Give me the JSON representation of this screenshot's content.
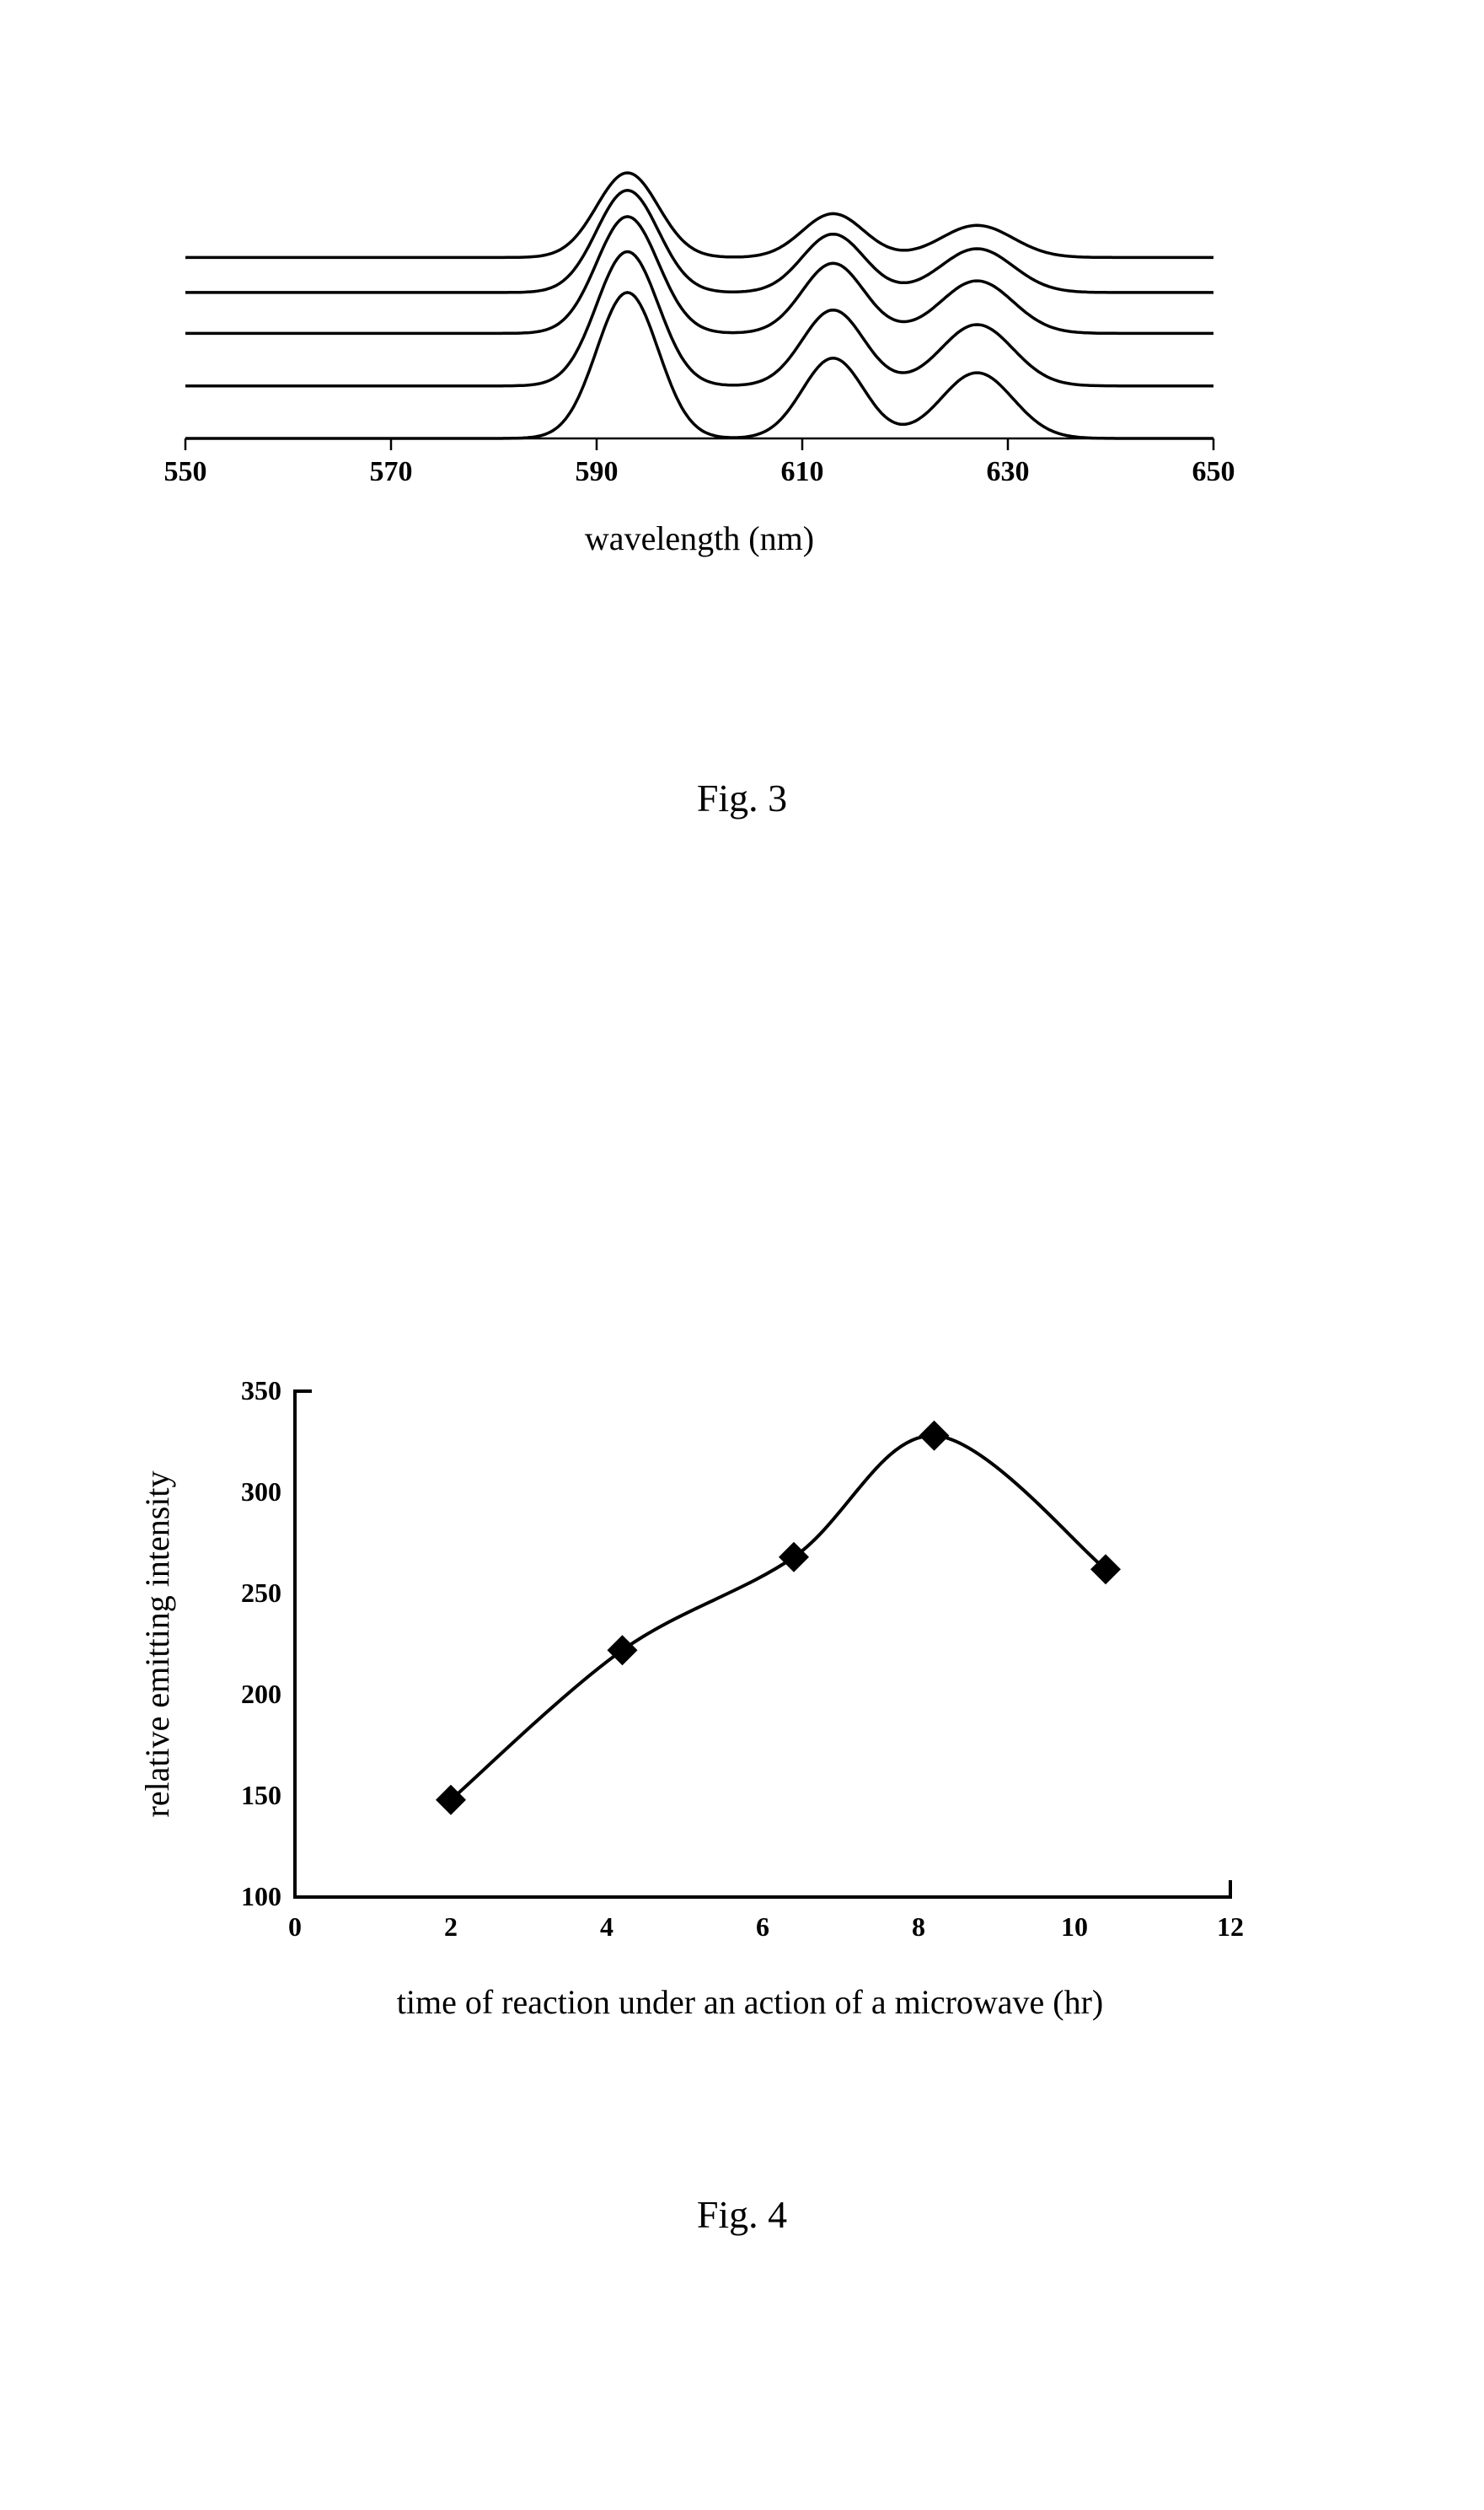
{
  "fig3": {
    "type": "line",
    "caption": "Fig. 3",
    "xlabel": "wavelength (nm)",
    "xlim": [
      550,
      650
    ],
    "xticks": [
      550,
      570,
      590,
      610,
      630,
      650
    ],
    "stroke_color": "#000000",
    "stroke_width": 3.5,
    "axis_width": 2.5,
    "background_color": "#ffffff",
    "tick_fontsize": 34,
    "label_fontsize": 40,
    "caption_fontsize": 46,
    "series": [
      {
        "baseline": 0,
        "peaks": [
          [
            593,
            100
          ],
          [
            613,
            55
          ],
          [
            627,
            45
          ]
        ],
        "half_widths": [
          3,
          3,
          3.5
        ]
      },
      {
        "baseline": 18,
        "peaks": [
          [
            593,
            92
          ],
          [
            613,
            52
          ],
          [
            627,
            42
          ]
        ],
        "half_widths": [
          3,
          3,
          3.5
        ]
      },
      {
        "baseline": 36,
        "peaks": [
          [
            593,
            80
          ],
          [
            613,
            48
          ],
          [
            627,
            36
          ]
        ],
        "half_widths": [
          3,
          3,
          3.5
        ]
      },
      {
        "baseline": 50,
        "peaks": [
          [
            593,
            70
          ],
          [
            613,
            40
          ],
          [
            627,
            30
          ]
        ],
        "half_widths": [
          3,
          3,
          3.5
        ]
      },
      {
        "baseline": 62,
        "peaks": [
          [
            593,
            58
          ],
          [
            613,
            30
          ],
          [
            627,
            22
          ]
        ],
        "half_widths": [
          3,
          3,
          3.5
        ]
      }
    ],
    "ymax_arb": 260
  },
  "fig4": {
    "type": "line",
    "caption": "Fig. 4",
    "xlabel": "time of reaction under an action of a microwave (hr)",
    "ylabel": "relative emitting intensity",
    "xlim": [
      0,
      12
    ],
    "xticks": [
      0,
      2,
      4,
      6,
      8,
      10,
      12
    ],
    "ylim": [
      100,
      350
    ],
    "yticks": [
      100,
      150,
      200,
      250,
      300,
      350
    ],
    "points": [
      [
        2,
        148
      ],
      [
        4.2,
        222
      ],
      [
        6.4,
        268
      ],
      [
        8.2,
        328
      ],
      [
        10.4,
        262
      ]
    ],
    "stroke_color": "#000000",
    "stroke_width": 4,
    "marker_shape": "diamond",
    "marker_size": 18,
    "marker_color": "#000000",
    "axis_width": 4,
    "background_color": "#ffffff",
    "tick_fontsize": 32,
    "label_fontsize": 40,
    "caption_fontsize": 46
  }
}
